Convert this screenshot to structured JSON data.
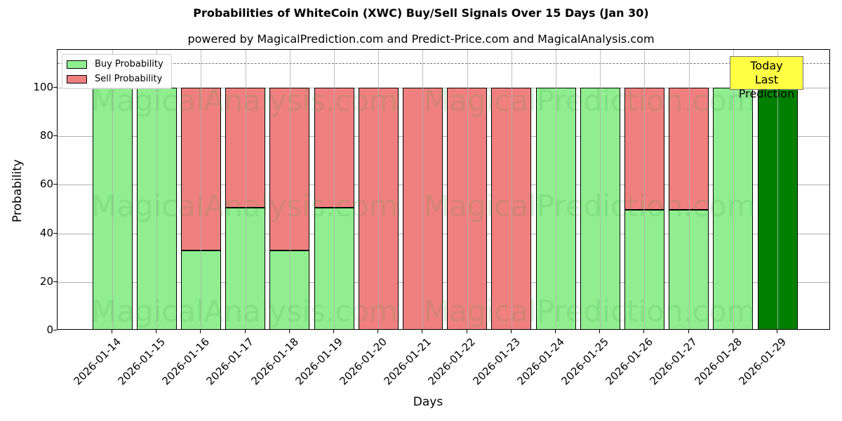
{
  "chart_data": {
    "type": "bar",
    "stacked": true,
    "title": "Probabilities of WhiteCoin (XWC) Buy/Sell Signals Over 15 Days (Jan 30)",
    "subtitle": "powered by MagicalPrediction.com and Predict-Price.com and MagicalAnalysis.com",
    "xlabel": "Days",
    "ylabel": "Probability",
    "ylim": [
      0,
      115.6
    ],
    "yticks": [
      0,
      20,
      40,
      60,
      80,
      100
    ],
    "grid": true,
    "legend_position": "upper left",
    "categories": [
      "2026-01-14",
      "2026-01-15",
      "2026-01-16",
      "2026-01-17",
      "2026-01-18",
      "2026-01-19",
      "2026-01-20",
      "2026-01-21",
      "2026-01-22",
      "2026-01-23",
      "2026-01-24",
      "2026-01-25",
      "2026-01-26",
      "2026-01-27",
      "2026-01-28",
      "2026-01-29"
    ],
    "series": [
      {
        "name": "Buy Probability",
        "color": "#90ee90",
        "values": [
          100,
          100,
          33,
          50.6,
          33,
          50.6,
          0,
          0,
          0,
          0,
          100,
          100,
          49.7,
          49.7,
          100,
          100
        ]
      },
      {
        "name": "Sell Probability",
        "color": "#f08080",
        "values": [
          0,
          0,
          67,
          49.4,
          67,
          49.4,
          100,
          100,
          100,
          100,
          0,
          0,
          50.3,
          50.3,
          0,
          0
        ]
      }
    ],
    "highlight": {
      "index": 15,
      "color": "#008000"
    },
    "reference_line": {
      "y": 110,
      "style": "dashed",
      "color": "#777777"
    },
    "annotations": [
      {
        "text": "Today\nLast Prediction",
        "x": "2026-01-29",
        "background": "#ffff44"
      }
    ],
    "watermarks": [
      "MagicalAnalysis.com",
      "MagicalPrediction.com"
    ]
  },
  "labels": {
    "title": "Probabilities of WhiteCoin (XWC) Buy/Sell Signals Over 15 Days (Jan 30)",
    "subtitle": "powered by MagicalPrediction.com and Predict-Price.com and MagicalAnalysis.com",
    "xlabel": "Days",
    "ylabel": "Probability",
    "legend_buy": "Buy Probability",
    "legend_sell": "Sell Probability",
    "annot_line1": "Today",
    "annot_line2": "Last Prediction",
    "wm_left": "MagicalAnalysis.com",
    "wm_right": "MagicalPrediction.com"
  }
}
